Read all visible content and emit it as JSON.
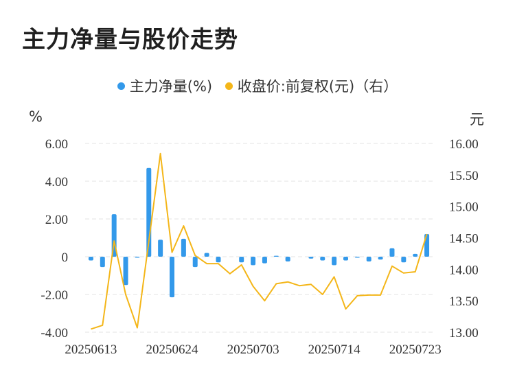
{
  "title": "主力净量与股价走势",
  "legend": {
    "bar_label": "主力净量(%)",
    "line_label": "收盘价:前复权(元)（右）"
  },
  "units": {
    "left": "%",
    "right": "元"
  },
  "colors": {
    "bar": "#3399ea",
    "line": "#f4b619",
    "grid": "#e3e3e3"
  },
  "chart_data": {
    "type": "bar+line",
    "title": "主力净量与股价走势",
    "x_tick_labels": [
      "20250613",
      "20250624",
      "20250703",
      "20250714",
      "20250723"
    ],
    "x_tick_indices": [
      0,
      7,
      14,
      21,
      28
    ],
    "y_left": {
      "label": "%",
      "ylim": [
        -4,
        6
      ],
      "ticks": [
        6,
        4,
        2,
        0,
        -2,
        -4
      ],
      "tick_labels": [
        "6.00",
        "4.00",
        "2.00",
        "0",
        "-2.00",
        "-4.00"
      ]
    },
    "y_right": {
      "label": "元",
      "ylim": [
        13.0,
        16.0
      ],
      "ticks": [
        16,
        15.5,
        15,
        14.5,
        14,
        13.5,
        13
      ],
      "tick_labels": [
        "16.00",
        "15.50",
        "15.00",
        "14.50",
        "14.00",
        "13.50",
        "13.00"
      ]
    },
    "grid": true,
    "legend_position": "top-center",
    "series": [
      {
        "name": "主力净量(%)",
        "type": "bar",
        "axis": "left",
        "values": [
          -0.2,
          -0.55,
          2.25,
          -1.5,
          -0.05,
          4.7,
          0.9,
          -2.15,
          0.95,
          -0.55,
          0.2,
          -0.3,
          0,
          -0.3,
          -0.45,
          -0.35,
          0.05,
          -0.25,
          0,
          -0.1,
          -0.2,
          -0.45,
          -0.2,
          -0.05,
          -0.25,
          -0.15,
          0.45,
          -0.3,
          0.15,
          1.2
        ]
      },
      {
        "name": "收盘价:前复权(元)（右）",
        "type": "line",
        "axis": "right",
        "values": [
          13.05,
          13.11,
          14.45,
          13.6,
          13.07,
          14.45,
          15.84,
          14.27,
          14.69,
          14.22,
          14.09,
          14.09,
          13.93,
          14.07,
          13.73,
          13.5,
          13.77,
          13.8,
          13.74,
          13.76,
          13.6,
          13.88,
          13.37,
          13.58,
          13.59,
          13.59,
          14.05,
          13.94,
          13.96,
          14.56
        ]
      }
    ]
  }
}
